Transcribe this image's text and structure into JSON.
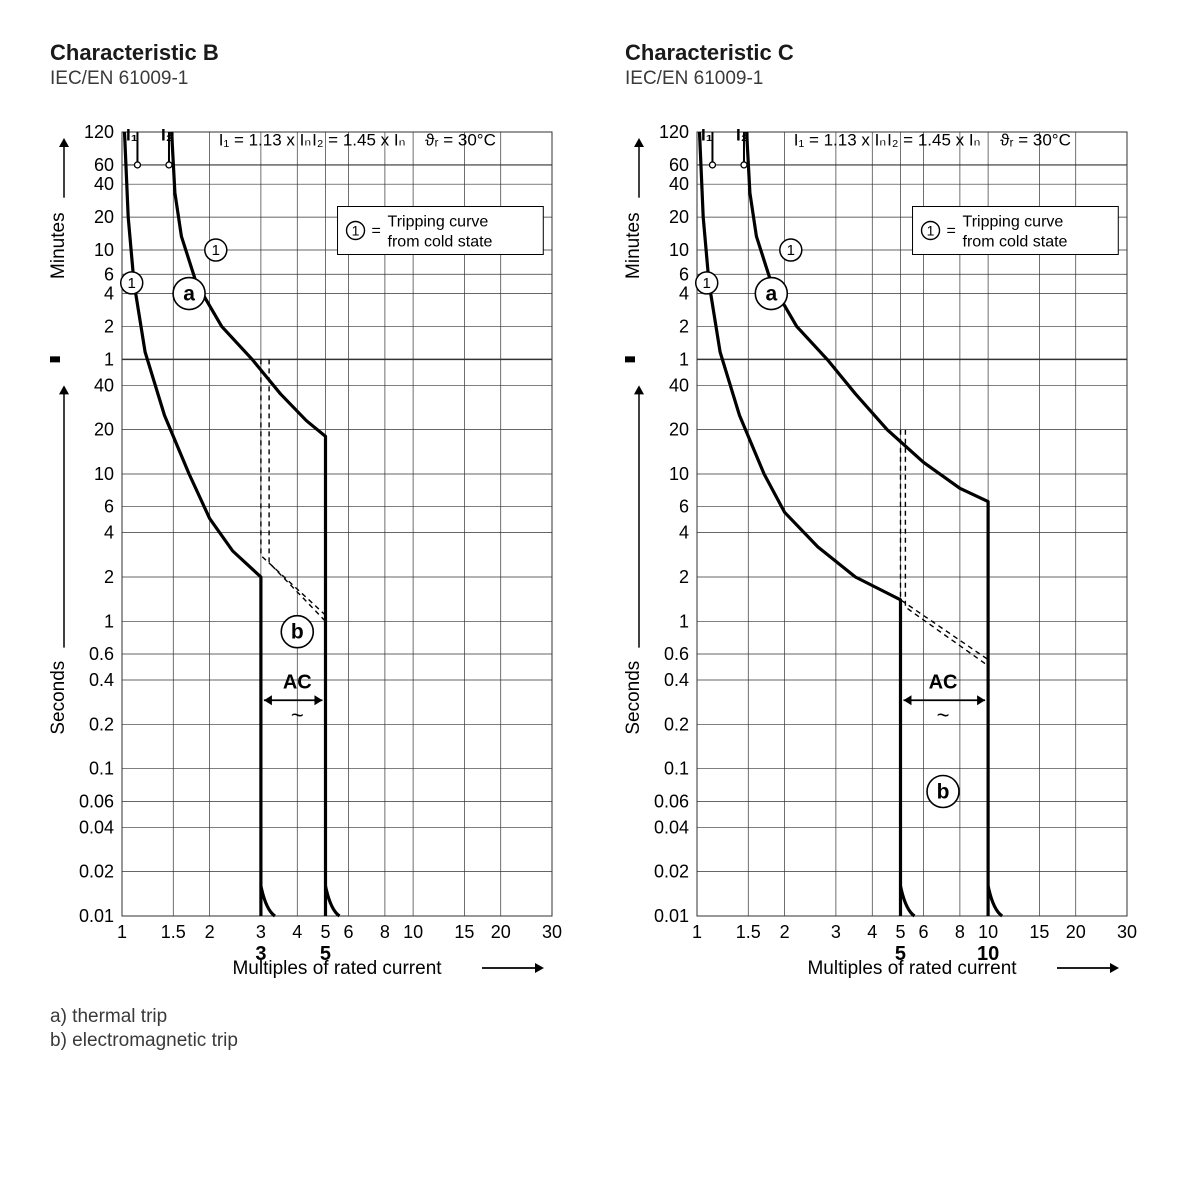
{
  "common": {
    "standard": "IEC/EN 61009-1",
    "legend_note_circle": "1",
    "legend_note_eq": "=",
    "legend_note_text1": "Tripping curve",
    "legend_note_text2": "from cold state",
    "header_I1": "I₁ = 1.13 x Iₙ",
    "header_I2": "I₂ = 1.45 x Iₙ",
    "header_theta": "ϑᵣ = 30°C",
    "xlabel": "Multiples of rated current",
    "ylabel_top": "Minutes",
    "ylabel_bot": "Seconds",
    "a_mark": "a",
    "b_mark": "b",
    "ac_label": "AC",
    "ac_sym": "~",
    "marker_one": "1",
    "footer_a": "a)  thermal trip",
    "footer_b": "b)  electromagnetic trip",
    "x_ticks": [
      1,
      1.5,
      2,
      3,
      4,
      5,
      6,
      8,
      10,
      15,
      20,
      30
    ],
    "y_minutes_ticks": [
      1,
      2,
      4,
      6,
      10,
      20,
      40,
      60,
      120
    ],
    "y_seconds_ticks": [
      0.01,
      0.02,
      0.04,
      0.06,
      0.1,
      0.2,
      0.4,
      0.6,
      1,
      2,
      4,
      6,
      10,
      20,
      40
    ],
    "y_seconds_max": 60,
    "y_min_top": 120,
    "grid_color": "#333333",
    "curve_color": "#000000",
    "curve_stroke": 3.2,
    "dash_stroke": 1.4,
    "tick_font": 18,
    "header_font": 17,
    "axis_font": 19
  },
  "charts": [
    {
      "title": "Characteristic B",
      "trip_low": 3,
      "trip_high": 5,
      "trip_low_label": "3",
      "trip_high_label": "5",
      "lower_curve": [
        [
          1.02,
          7200
        ],
        [
          1.05,
          1200
        ],
        [
          1.1,
          300
        ],
        [
          1.2,
          70
        ],
        [
          1.4,
          25
        ],
        [
          1.7,
          10
        ],
        [
          2,
          5
        ],
        [
          2.4,
          3
        ],
        [
          3,
          2
        ],
        [
          3,
          0.01
        ]
      ],
      "upper_curve": [
        [
          1.48,
          7200
        ],
        [
          1.52,
          2000
        ],
        [
          1.6,
          800
        ],
        [
          1.8,
          300
        ],
        [
          2.2,
          120
        ],
        [
          2.8,
          60
        ],
        [
          3.5,
          35
        ],
        [
          4.3,
          23
        ],
        [
          5,
          18
        ],
        [
          5,
          0.01
        ]
      ],
      "dash1": [
        [
          3,
          60
        ],
        [
          3,
          2.8
        ],
        [
          5,
          1.1
        ]
      ],
      "dash2": [
        [
          3.2,
          60
        ],
        [
          3.2,
          2.5
        ],
        [
          5,
          1
        ]
      ],
      "a_pos": [
        1.7,
        240
      ],
      "b_pos": [
        4,
        0.85
      ],
      "ac_pos": [
        4,
        0.33
      ],
      "one_pos_upper": [
        2.1,
        600
      ],
      "one_pos_lower": [
        1.08,
        300
      ]
    },
    {
      "title": "Characteristic C",
      "trip_low": 5,
      "trip_high": 10,
      "trip_low_label": "5",
      "trip_high_label": "10",
      "lower_curve": [
        [
          1.02,
          7200
        ],
        [
          1.05,
          1200
        ],
        [
          1.1,
          300
        ],
        [
          1.2,
          70
        ],
        [
          1.4,
          25
        ],
        [
          1.7,
          10
        ],
        [
          2,
          5.5
        ],
        [
          2.6,
          3.2
        ],
        [
          3.5,
          2
        ],
        [
          5,
          1.4
        ],
        [
          5,
          0.01
        ]
      ],
      "upper_curve": [
        [
          1.48,
          7200
        ],
        [
          1.52,
          2000
        ],
        [
          1.6,
          800
        ],
        [
          1.8,
          300
        ],
        [
          2.2,
          120
        ],
        [
          2.8,
          60
        ],
        [
          3.5,
          35
        ],
        [
          4.5,
          20
        ],
        [
          6,
          12
        ],
        [
          8,
          8
        ],
        [
          10,
          6.5
        ],
        [
          10,
          0.01
        ]
      ],
      "dash1": [
        [
          5,
          20
        ],
        [
          5,
          1.4
        ],
        [
          10,
          0.55
        ]
      ],
      "dash2": [
        [
          5.2,
          20
        ],
        [
          5.2,
          1.25
        ],
        [
          10,
          0.5
        ]
      ],
      "a_pos": [
        1.8,
        240
      ],
      "b_pos": [
        7,
        0.07
      ],
      "ac_pos": [
        7,
        0.33
      ],
      "one_pos_upper": [
        2.1,
        600
      ],
      "one_pos_lower": [
        1.08,
        300
      ]
    }
  ]
}
